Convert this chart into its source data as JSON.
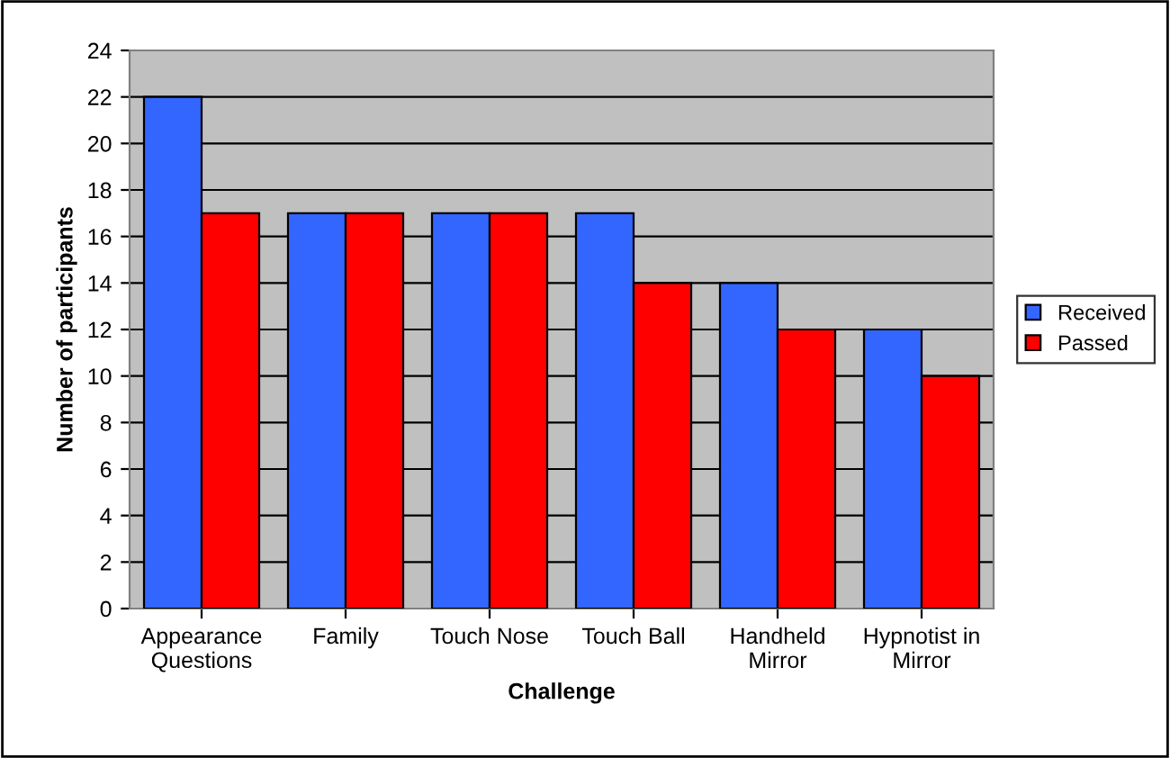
{
  "chart_data": {
    "type": "bar",
    "xlabel": "Challenge",
    "ylabel": "Number of participants",
    "categories": [
      "Appearance\nQuestions",
      "Family",
      "Touch Nose",
      "Touch Ball",
      "Handheld\nMirror",
      "Hypnotist in\nMirror"
    ],
    "series": [
      {
        "name": "Received",
        "color": "#3366ff",
        "values": [
          22,
          17,
          17,
          17,
          14,
          12
        ]
      },
      {
        "name": "Passed",
        "color": "#ff0000",
        "values": [
          17,
          17,
          17,
          14,
          12,
          10
        ]
      }
    ],
    "ylim": [
      0,
      24
    ],
    "yticks": [
      0,
      2,
      4,
      6,
      8,
      10,
      12,
      14,
      16,
      18,
      20,
      22,
      24
    ],
    "grid": "y",
    "legend": "right"
  }
}
